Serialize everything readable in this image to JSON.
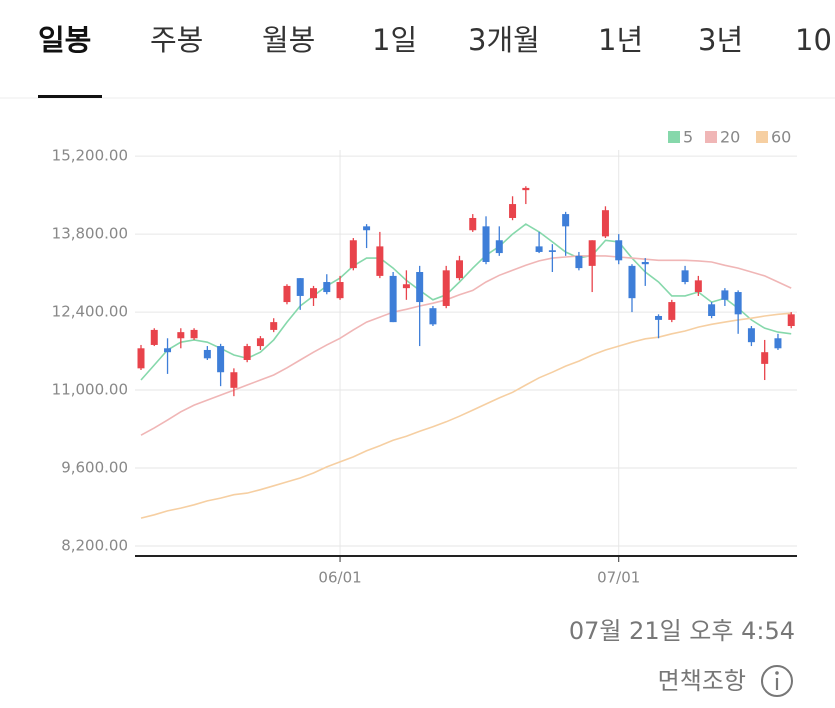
{
  "tabs": [
    {
      "label": "일봉",
      "selected": true
    },
    {
      "label": "주봉"
    },
    {
      "label": "월봉"
    },
    {
      "label": "1일"
    },
    {
      "label": "3개월"
    },
    {
      "label": "1년"
    },
    {
      "label": "3년"
    },
    {
      "label": "10"
    }
  ],
  "chart_data": {
    "type": "candlestick",
    "categories": [
      null,
      null,
      null,
      null,
      null,
      null,
      null,
      null,
      null,
      null,
      null,
      null,
      null,
      null,
      null,
      "06/01",
      null,
      null,
      null,
      null,
      null,
      null,
      null,
      null,
      null,
      null,
      null,
      null,
      null,
      null,
      null,
      null,
      null,
      null,
      null,
      null,
      "07/01",
      null,
      null,
      null,
      null,
      null,
      null,
      null,
      null,
      null,
      null,
      null,
      null,
      null
    ],
    "open": [
      11390,
      11810,
      11750,
      11930,
      11930,
      11720,
      11790,
      11040,
      11540,
      11790,
      12080,
      12580,
      13010,
      12650,
      12940,
      12650,
      13190,
      13940,
      13050,
      13050,
      12830,
      13120,
      12470,
      12510,
      13010,
      13870,
      13940,
      13690,
      14090,
      14590,
      13580,
      13510,
      14160,
      13410,
      13230,
      13760,
      13690,
      13230,
      13300,
      12330,
      12260,
      13150,
      12760,
      12540,
      12790,
      12760,
      12110,
      11470,
      11930,
      12150
    ],
    "high": [
      11810,
      12110,
      11930,
      12110,
      12110,
      11790,
      11830,
      11390,
      11830,
      11970,
      12290,
      12900,
      13010,
      12870,
      13080,
      13050,
      13730,
      13980,
      13840,
      13120,
      13150,
      13230,
      12510,
      13230,
      13410,
      14160,
      14120,
      13940,
      14480,
      14660,
      13840,
      13620,
      14200,
      13480,
      13690,
      14300,
      13800,
      13260,
      13370,
      12360,
      12620,
      13230,
      13050,
      12580,
      12830,
      12790,
      12150,
      11900,
      12010,
      12400
    ],
    "low": [
      11360,
      11790,
      11290,
      11750,
      11900,
      11540,
      11070,
      10890,
      11500,
      11720,
      12040,
      12540,
      12440,
      12510,
      12720,
      12620,
      13150,
      13550,
      13010,
      12220,
      12620,
      11790,
      12150,
      12470,
      12970,
      13840,
      13260,
      13410,
      14050,
      14340,
      13460,
      13120,
      13410,
      13150,
      12760,
      13730,
      13260,
      12400,
      12870,
      11930,
      12220,
      12900,
      12690,
      12290,
      12510,
      12010,
      11790,
      11180,
      11720,
      12110
    ],
    "close": [
      11750,
      12080,
      11680,
      12040,
      12080,
      11570,
      11320,
      11320,
      11790,
      11930,
      12220,
      12870,
      12690,
      12830,
      12760,
      12940,
      13690,
      13870,
      13580,
      12220,
      12900,
      12580,
      12180,
      13150,
      13330,
      14090,
      13300,
      13460,
      14340,
      14630,
      13480,
      13480,
      13940,
      13190,
      13690,
      14230,
      13330,
      12650,
      13260,
      12260,
      12580,
      12940,
      12970,
      12330,
      12620,
      12360,
      11860,
      11680,
      11750,
      12360
    ],
    "up_color": "#e8434b",
    "down_color": "#3e7ed8",
    "series": [
      {
        "name": "5",
        "color": "#86d8ab",
        "values": [
          11180,
          11450,
          11720,
          11860,
          11900,
          11860,
          11750,
          11630,
          11570,
          11680,
          11900,
          12220,
          12510,
          12690,
          12870,
          13010,
          13230,
          13370,
          13370,
          13190,
          12970,
          12790,
          12620,
          12710,
          12940,
          13190,
          13420,
          13580,
          13800,
          13980,
          13840,
          13660,
          13480,
          13370,
          13420,
          13690,
          13660,
          13370,
          13120,
          12940,
          12690,
          12690,
          12760,
          12580,
          12650,
          12470,
          12260,
          12110,
          12040,
          12010
        ]
      },
      {
        "name": "20",
        "color": "#f0b6b6",
        "values": [
          10190,
          10320,
          10460,
          10610,
          10730,
          10820,
          10910,
          11000,
          11090,
          11180,
          11270,
          11400,
          11540,
          11680,
          11810,
          11930,
          12080,
          12220,
          12310,
          12400,
          12450,
          12510,
          12560,
          12620,
          12710,
          12790,
          12940,
          13060,
          13150,
          13240,
          13320,
          13370,
          13390,
          13410,
          13410,
          13410,
          13390,
          13370,
          13350,
          13330,
          13330,
          13330,
          13320,
          13300,
          13240,
          13190,
          13120,
          13050,
          12940,
          12830
        ]
      },
      {
        "name": "60",
        "color": "#f6cfa2",
        "values": [
          8700,
          8760,
          8830,
          8880,
          8940,
          9010,
          9060,
          9120,
          9150,
          9210,
          9280,
          9350,
          9420,
          9510,
          9620,
          9710,
          9800,
          9910,
          10000,
          10100,
          10170,
          10260,
          10340,
          10430,
          10530,
          10640,
          10750,
          10860,
          10960,
          11090,
          11220,
          11320,
          11430,
          11520,
          11630,
          11720,
          11790,
          11860,
          11920,
          11950,
          12010,
          12060,
          12130,
          12180,
          12220,
          12260,
          12290,
          12330,
          12360,
          12380
        ]
      }
    ],
    "ylim": [
      8020,
      15670
    ],
    "yticks": [
      {
        "value": 8200,
        "label": "8,200.00"
      },
      {
        "value": 9600,
        "label": "9,600.00"
      },
      {
        "value": 11000,
        "label": "11,000.00"
      },
      {
        "value": 12400,
        "label": "12,400.00"
      },
      {
        "value": 13800,
        "label": "13,800.00"
      },
      {
        "value": 15200,
        "label": "15,200.00"
      }
    ],
    "grid": true,
    "legend": "top-right"
  },
  "footer": {
    "timestamp": "07월 21일 오후 4:54",
    "disclaimer": "면책조항"
  }
}
